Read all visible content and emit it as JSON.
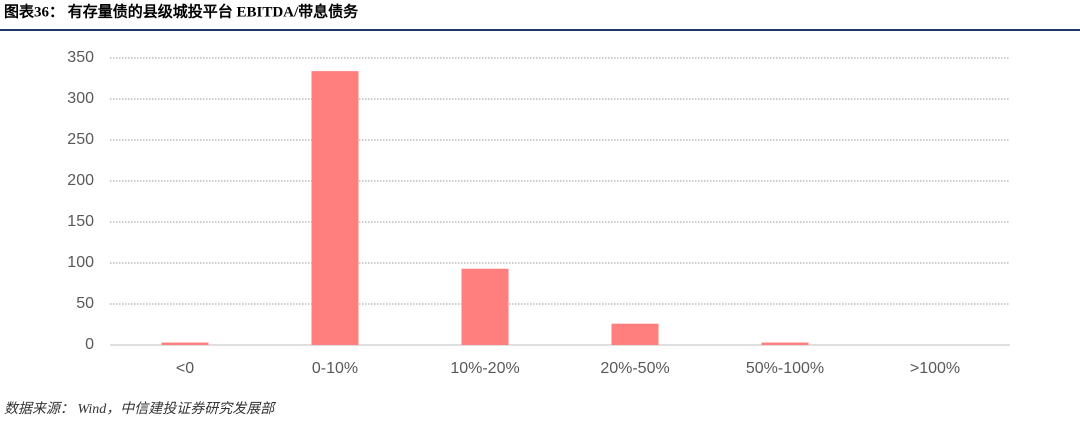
{
  "chart_data": {
    "type": "bar",
    "title": "图表36： 有存量债的县级城投平台 EBITDA/带息债务",
    "source": "数据来源： Wind，中信建投证券研究发展部",
    "categories": [
      "<0",
      "0-10%",
      "10%-20%",
      "20%-50%",
      "50%-100%",
      ">100%"
    ],
    "values": [
      3,
      334,
      93,
      26,
      3,
      0
    ],
    "color": "#ff7f7f",
    "ylim": [
      0,
      350
    ],
    "yticks": [
      0,
      50,
      100,
      150,
      200,
      250,
      300,
      350
    ],
    "grid": true
  }
}
